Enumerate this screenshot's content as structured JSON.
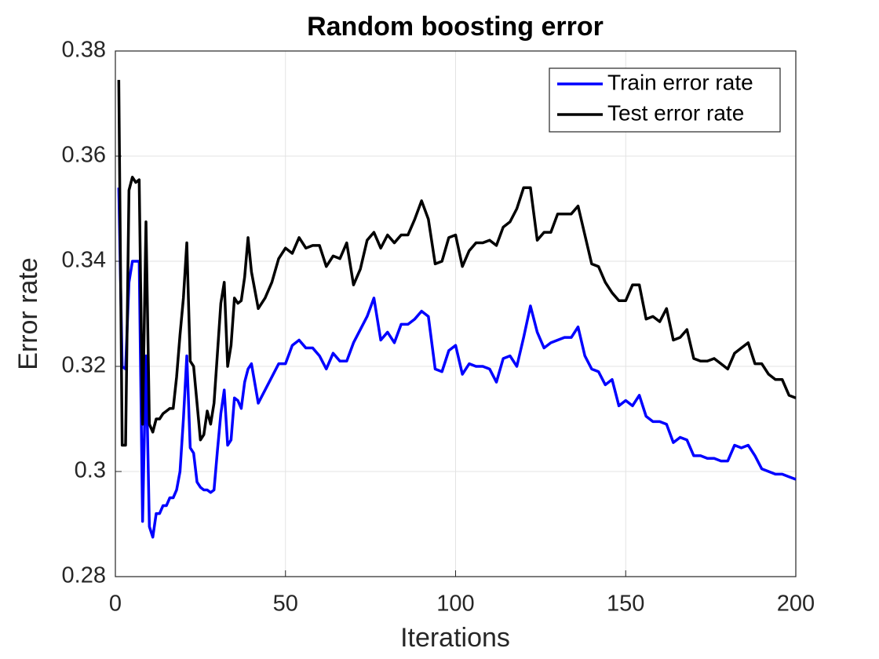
{
  "chart_data": {
    "type": "line",
    "title": "Random boosting error",
    "x_label": "Iterations",
    "y_label": "Error rate",
    "x": [
      1,
      2,
      3,
      4,
      5,
      6,
      7,
      8,
      9,
      10,
      11,
      12,
      13,
      14,
      15,
      16,
      17,
      18,
      19,
      20,
      21,
      22,
      23,
      24,
      25,
      26,
      27,
      28,
      29,
      30,
      31,
      32,
      33,
      34,
      35,
      36,
      37,
      38,
      39,
      40,
      42,
      44,
      46,
      48,
      50,
      52,
      54,
      56,
      58,
      60,
      62,
      64,
      66,
      68,
      70,
      72,
      74,
      76,
      78,
      80,
      82,
      84,
      86,
      88,
      90,
      92,
      94,
      96,
      98,
      100,
      102,
      104,
      106,
      108,
      110,
      112,
      114,
      116,
      118,
      120,
      122,
      124,
      126,
      128,
      130,
      132,
      134,
      136,
      138,
      140,
      142,
      144,
      146,
      148,
      150,
      152,
      154,
      156,
      158,
      160,
      162,
      164,
      166,
      168,
      170,
      172,
      174,
      176,
      178,
      180,
      182,
      184,
      186,
      188,
      190,
      192,
      194,
      196,
      198,
      200
    ],
    "series": [
      {
        "name": "Train error rate",
        "color": "#0000ff",
        "values": [
          0.354,
          0.32,
          0.3195,
          0.336,
          0.34,
          0.34,
          0.34,
          0.2905,
          0.322,
          0.2895,
          0.2875,
          0.292,
          0.292,
          0.2935,
          0.2935,
          0.295,
          0.295,
          0.2965,
          0.3,
          0.31,
          0.322,
          0.3045,
          0.3035,
          0.298,
          0.297,
          0.2965,
          0.2965,
          0.296,
          0.2965,
          0.304,
          0.311,
          0.3155,
          0.305,
          0.306,
          0.314,
          0.3135,
          0.312,
          0.317,
          0.3195,
          0.3205,
          0.313,
          0.3155,
          0.318,
          0.3205,
          0.3205,
          0.324,
          0.325,
          0.3235,
          0.3235,
          0.322,
          0.3195,
          0.3225,
          0.321,
          0.321,
          0.3245,
          0.327,
          0.3295,
          0.333,
          0.325,
          0.3265,
          0.3245,
          0.328,
          0.328,
          0.329,
          0.3305,
          0.3295,
          0.3195,
          0.319,
          0.323,
          0.324,
          0.3185,
          0.3205,
          0.32,
          0.32,
          0.3195,
          0.317,
          0.3215,
          0.322,
          0.32,
          0.3255,
          0.3315,
          0.3265,
          0.3235,
          0.3245,
          0.325,
          0.3255,
          0.3255,
          0.3275,
          0.322,
          0.3195,
          0.319,
          0.3165,
          0.3175,
          0.3125,
          0.3135,
          0.3125,
          0.3145,
          0.3105,
          0.3095,
          0.3095,
          0.309,
          0.3055,
          0.3065,
          0.306,
          0.303,
          0.303,
          0.3025,
          0.3025,
          0.302,
          0.302,
          0.305,
          0.3045,
          0.305,
          0.303,
          0.3005,
          0.3,
          0.2995,
          0.2995,
          0.299,
          0.2985
        ]
      },
      {
        "name": "Test error rate",
        "color": "#000000",
        "values": [
          0.3745,
          0.305,
          0.305,
          0.3535,
          0.356,
          0.355,
          0.3555,
          0.309,
          0.3475,
          0.309,
          0.3075,
          0.31,
          0.31,
          0.311,
          0.3115,
          0.312,
          0.312,
          0.318,
          0.326,
          0.333,
          0.3435,
          0.321,
          0.32,
          0.313,
          0.306,
          0.307,
          0.3115,
          0.309,
          0.313,
          0.3225,
          0.332,
          0.336,
          0.32,
          0.324,
          0.333,
          0.332,
          0.3325,
          0.337,
          0.3445,
          0.338,
          0.331,
          0.333,
          0.336,
          0.3405,
          0.3425,
          0.3415,
          0.3445,
          0.3425,
          0.343,
          0.343,
          0.339,
          0.341,
          0.3405,
          0.3435,
          0.3355,
          0.3385,
          0.344,
          0.3455,
          0.3425,
          0.345,
          0.3435,
          0.345,
          0.345,
          0.348,
          0.3515,
          0.348,
          0.3395,
          0.34,
          0.3445,
          0.345,
          0.339,
          0.342,
          0.3435,
          0.3435,
          0.344,
          0.343,
          0.3465,
          0.3475,
          0.35,
          0.354,
          0.354,
          0.344,
          0.3455,
          0.3455,
          0.349,
          0.349,
          0.349,
          0.3505,
          0.345,
          0.3395,
          0.339,
          0.336,
          0.334,
          0.3325,
          0.3325,
          0.3355,
          0.3355,
          0.329,
          0.3295,
          0.3285,
          0.331,
          0.325,
          0.3255,
          0.327,
          0.3215,
          0.321,
          0.321,
          0.3215,
          0.3205,
          0.3195,
          0.3225,
          0.3235,
          0.3245,
          0.3205,
          0.3205,
          0.3185,
          0.3175,
          0.3175,
          0.3145,
          0.314
        ]
      }
    ],
    "xlim": [
      0,
      200
    ],
    "xticks": [
      0,
      50,
      100,
      150,
      200
    ],
    "ylim": [
      0.28,
      0.38
    ],
    "yticks": [
      0.28,
      0.3,
      0.32,
      0.34,
      0.36,
      0.38
    ],
    "grid": true,
    "legend": "upper right"
  }
}
